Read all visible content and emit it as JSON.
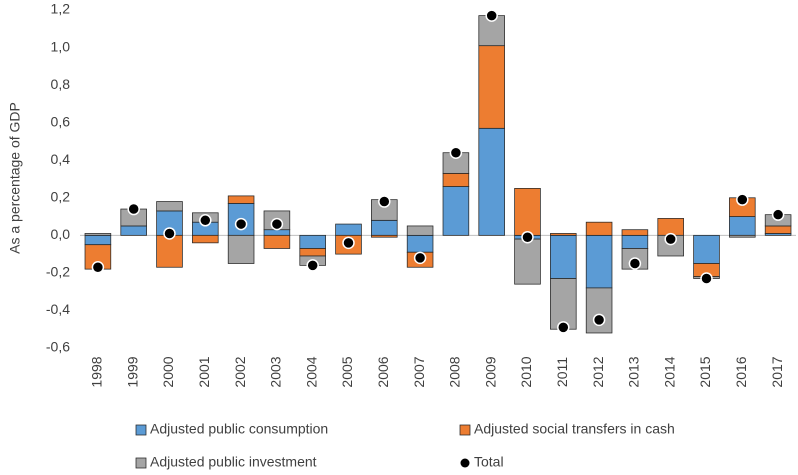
{
  "chart_data": {
    "type": "bar",
    "stacked": true,
    "y_label": "As a percentage of GDP",
    "categories": [
      "1998",
      "1999",
      "2000",
      "2001",
      "2002",
      "2003",
      "2004",
      "2005",
      "2006",
      "2007",
      "2008",
      "2009",
      "2010",
      "2011",
      "2012",
      "2013",
      "2014",
      "2015",
      "2016",
      "2017"
    ],
    "series": [
      {
        "name": "Adjusted public consumption",
        "color": "#5b9bd5",
        "values": [
          -0.05,
          0.05,
          0.13,
          0.07,
          0.17,
          0.03,
          -0.07,
          0.06,
          0.08,
          -0.09,
          0.26,
          0.57,
          -0.02,
          -0.23,
          -0.28,
          -0.07,
          0,
          -0.15,
          0.1,
          0.01
        ]
      },
      {
        "name": "Adjusted social transfers in cash",
        "color": "#ed7d31",
        "values": [
          -0.13,
          0,
          -0.17,
          -0.04,
          0.04,
          -0.07,
          -0.04,
          -0.1,
          -0.01,
          -0.08,
          0.07,
          0.44,
          0.25,
          0.01,
          0.07,
          0.03,
          0.09,
          -0.07,
          0.1,
          0.04
        ]
      },
      {
        "name": "Adjusted public investment",
        "color": "#a5a5a5",
        "values": [
          0.01,
          0.09,
          0.05,
          0.05,
          -0.15,
          0.1,
          -0.05,
          0,
          0.11,
          0.05,
          0.11,
          0.16,
          -0.24,
          -0.27,
          -0.24,
          -0.11,
          -0.11,
          -0.01,
          -0.01,
          0.06
        ]
      },
      {
        "name": "Total",
        "color": "#000000",
        "type": "scatter",
        "values": [
          -0.17,
          0.14,
          0.01,
          0.08,
          0.06,
          0.06,
          -0.16,
          -0.04,
          0.18,
          -0.12,
          0.44,
          1.17,
          -0.01,
          -0.49,
          -0.45,
          -0.15,
          -0.02,
          -0.23,
          0.19,
          0.11
        ]
      }
    ],
    "ylim": [
      -0.6,
      1.2
    ],
    "yticks": [
      {
        "value": -0.6,
        "label": "-0,6"
      },
      {
        "value": -0.4,
        "label": "-0,4"
      },
      {
        "value": -0.2,
        "label": "-0,2"
      },
      {
        "value": 0,
        "label": "0,0"
      },
      {
        "value": 0.2,
        "label": "0,2"
      },
      {
        "value": 0.4,
        "label": "0,4"
      },
      {
        "value": 0.6,
        "label": "0,6"
      },
      {
        "value": 0.8,
        "label": "0,8"
      },
      {
        "value": 1.0,
        "label": "1,0"
      },
      {
        "value": 1.2,
        "label": "1,2"
      }
    ],
    "grid": false,
    "legend": "bottom"
  }
}
